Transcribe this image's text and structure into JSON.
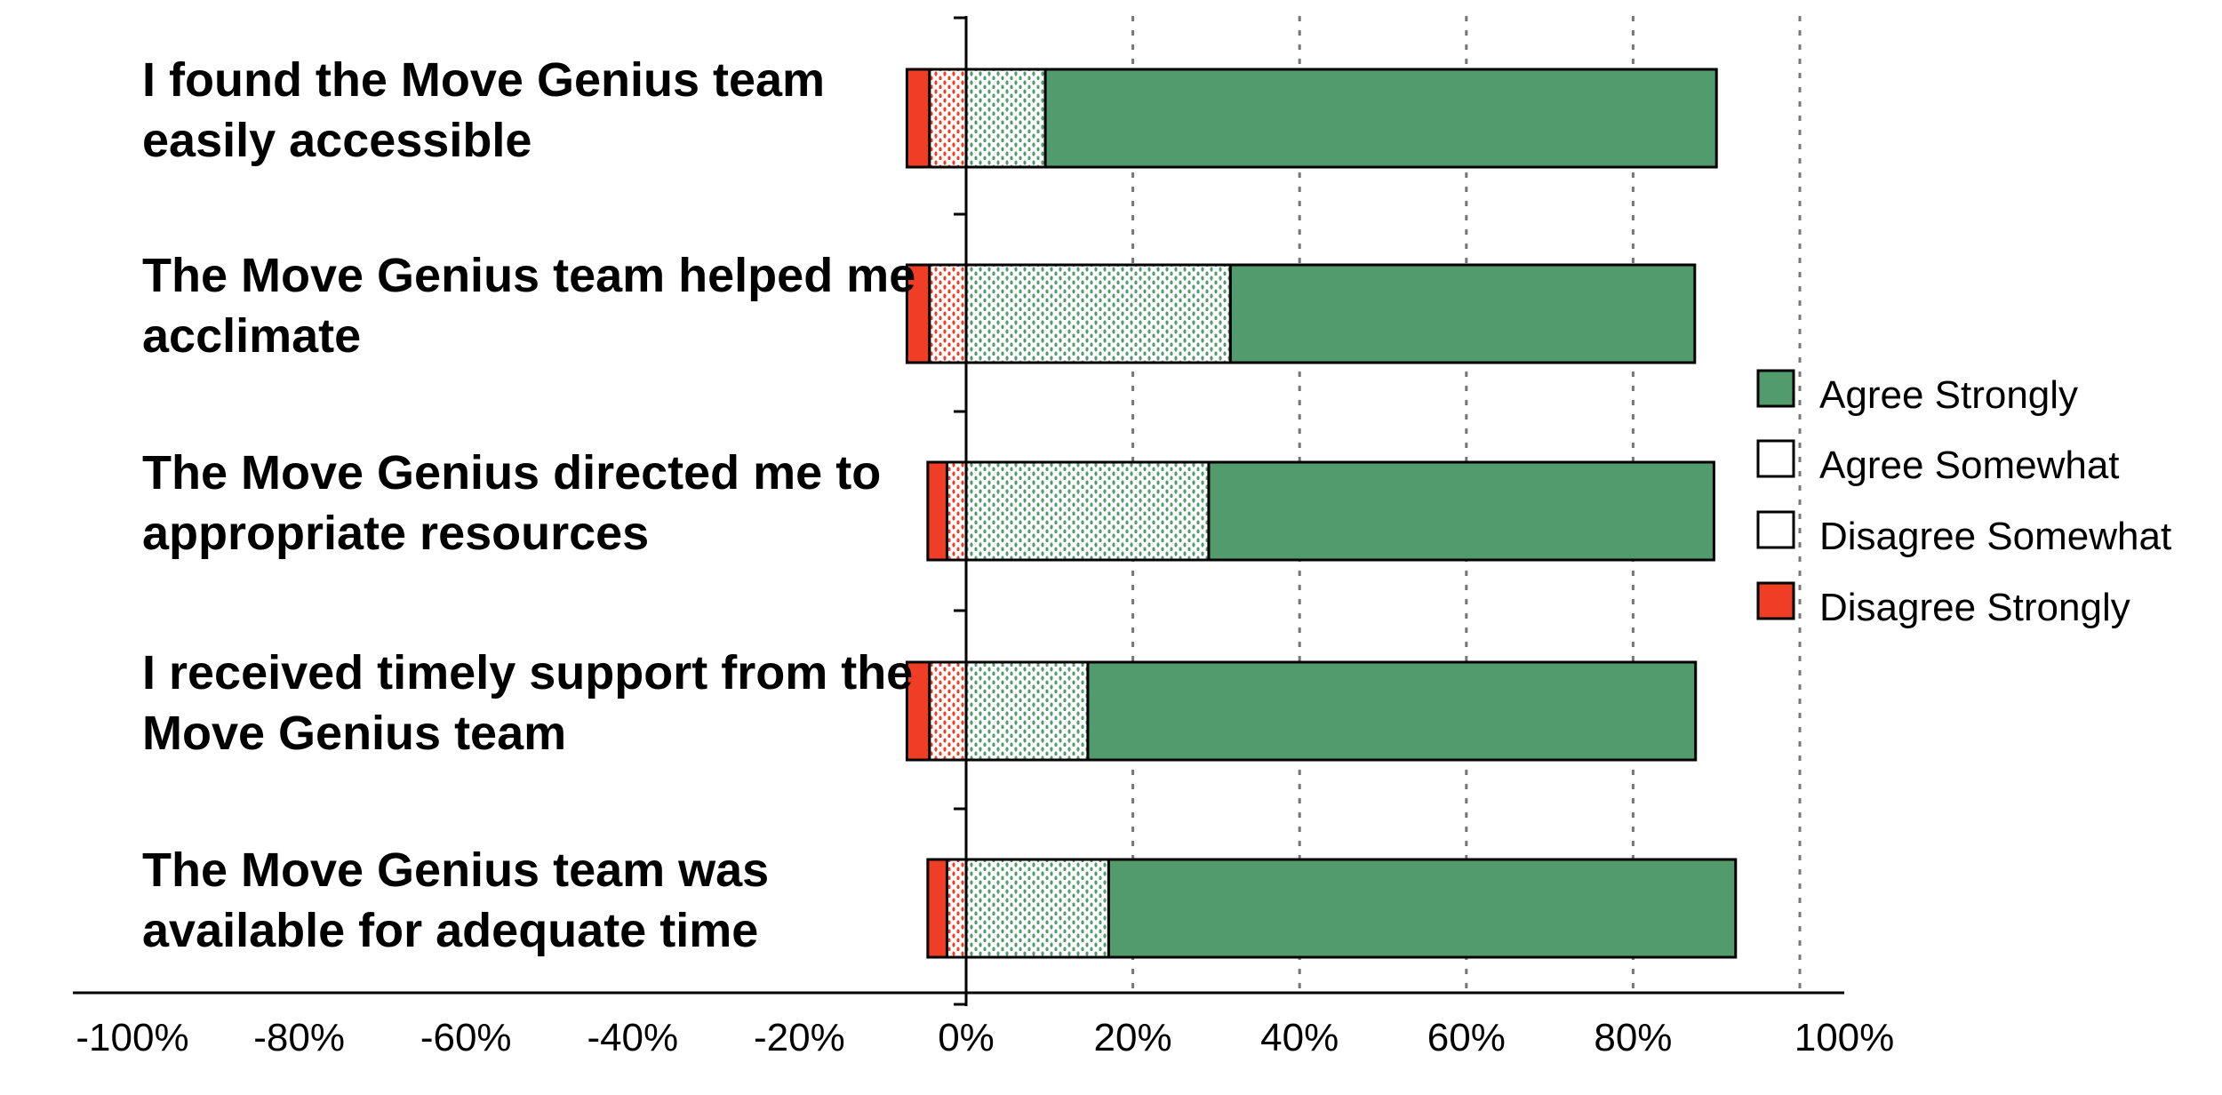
{
  "chart_data": {
    "type": "bar",
    "orientation": "horizontal",
    "stacked": "diverging",
    "categories": [
      [
        "I found the Move Genius team",
        "easily accessible"
      ],
      [
        "The Move Genius team helped me",
        "acclimate"
      ],
      [
        "The Move Genius directed me to",
        "appropriate resources"
      ],
      [
        "I received timely support from the",
        "Move Genius team"
      ],
      [
        "The Move Genius team was",
        "available for adequate time"
      ]
    ],
    "series": [
      {
        "name": "Agree Strongly",
        "color": "#529B6C",
        "pattern": "solid",
        "values": [
          80.5,
          55.7,
          60.6,
          72.9,
          75.2
        ]
      },
      {
        "name": "Agree Somewhat",
        "color": "#529B6C",
        "pattern": "dotted",
        "values": [
          9.5,
          31.7,
          29.1,
          14.6,
          17.1
        ]
      },
      {
        "name": "Disagree Somewhat",
        "color": "#EF3E25",
        "pattern": "dotted",
        "values": [
          4.4,
          4.4,
          2.3,
          4.4,
          2.3
        ]
      },
      {
        "name": "Disagree Strongly",
        "color": "#EF3E25",
        "pattern": "solid",
        "values": [
          2.7,
          2.7,
          2.3,
          2.7,
          2.3
        ]
      }
    ],
    "xlim": [
      -100,
      100
    ],
    "xticks": [
      "-100%",
      "-80%",
      "-60%",
      "-40%",
      "-20%",
      "0%",
      "20%",
      "40%",
      "60%",
      "80%",
      "100%"
    ],
    "xtick_values": [
      -100,
      -80,
      -60,
      -40,
      -20,
      0,
      20,
      40,
      60,
      80,
      100
    ],
    "gridlines": "vertical dotted at positive ticks",
    "legend_position": "right"
  }
}
